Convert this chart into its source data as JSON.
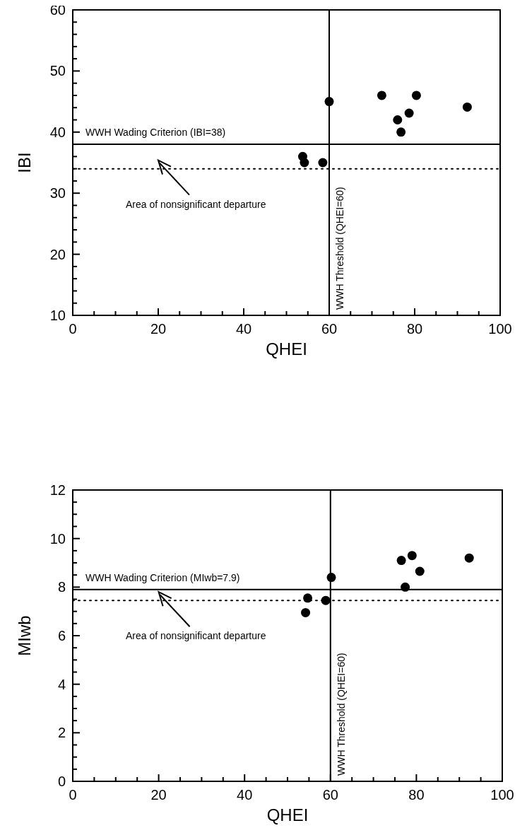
{
  "chart_data": [
    {
      "type": "scatter",
      "xlabel": "QHEI",
      "ylabel": "IBI",
      "marker": "circle",
      "grid": false,
      "series": [
        {
          "color": "#000000",
          "x": [
            53.8,
            54.2,
            58.5,
            60,
            72.3,
            76,
            76.8,
            78.7,
            80.4,
            92.3
          ],
          "values": [
            36,
            35,
            35,
            45,
            46,
            42,
            40,
            43.1,
            46,
            44.1
          ]
        }
      ],
      "xlim": [
        0,
        100
      ],
      "ylim": [
        10,
        60
      ],
      "xticks": [
        0,
        {
          "value": 5,
          "label": null
        },
        {
          "value": 10,
          "label": null
        },
        {
          "value": 15,
          "label": null
        },
        20,
        {
          "value": 25,
          "label": null
        },
        {
          "value": 30,
          "label": null
        },
        {
          "value": 35,
          "label": null
        },
        40,
        {
          "value": 45,
          "label": null
        },
        {
          "value": 50,
          "label": null
        },
        {
          "value": 55,
          "label": null
        },
        60,
        {
          "value": 65,
          "label": null
        },
        {
          "value": 70,
          "label": null
        },
        {
          "value": 75,
          "label": null
        },
        80,
        {
          "value": 85,
          "label": null
        },
        {
          "value": 90,
          "label": null
        },
        {
          "value": 95,
          "label": null
        },
        100
      ],
      "yticks": [
        10,
        {
          "value": 12,
          "label": null
        },
        {
          "value": 14,
          "label": null
        },
        {
          "value": 16,
          "label": null
        },
        {
          "value": 18,
          "label": null
        },
        20,
        {
          "value": 22,
          "label": null
        },
        {
          "value": 24,
          "label": null
        },
        {
          "value": 26,
          "label": null
        },
        {
          "value": 28,
          "label": null
        },
        30,
        {
          "value": 32,
          "label": null
        },
        {
          "value": 34,
          "label": null
        },
        {
          "value": 36,
          "label": null
        },
        {
          "value": 38,
          "label": null
        },
        40,
        {
          "value": 42,
          "label": null
        },
        {
          "value": 44,
          "label": null
        },
        {
          "value": 46,
          "label": null
        },
        {
          "value": 48,
          "label": null
        },
        50,
        {
          "value": 52,
          "label": null
        },
        {
          "value": 54,
          "label": null
        },
        {
          "value": 56,
          "label": null
        },
        {
          "value": 58,
          "label": null
        },
        60
      ],
      "ref_lines": [
        {
          "axis": "y",
          "value": 38,
          "label": "WWH Wading Criterion (IBI=38)",
          "color": "#000000",
          "line_style": "solid"
        },
        {
          "axis": "y",
          "value": 34,
          "color": "#000000",
          "line_style": "dotted"
        },
        {
          "axis": "x",
          "value": 60,
          "label": "WWH Threshold (QHEI=60)",
          "color": "#000000",
          "line_style": "solid"
        }
      ],
      "annotations": [
        "Area of nonsignificant departure"
      ]
    },
    {
      "type": "scatter",
      "xlabel": "QHEI",
      "ylabel": "MIwb",
      "marker": "circle",
      "grid": false,
      "series": [
        {
          "color": "#000000",
          "x": [
            54.2,
            54.7,
            58.9,
            60.2,
            76.5,
            77.4,
            79,
            80.8,
            92.3
          ],
          "values": [
            6.95,
            7.55,
            7.45,
            8.4,
            9.1,
            8,
            9.3,
            8.65,
            9.2
          ]
        }
      ],
      "xlim": [
        0,
        100
      ],
      "ylim": [
        0,
        12
      ],
      "xticks": [
        0,
        {
          "value": 5,
          "label": null
        },
        {
          "value": 10,
          "label": null
        },
        {
          "value": 15,
          "label": null
        },
        20,
        {
          "value": 25,
          "label": null
        },
        {
          "value": 30,
          "label": null
        },
        {
          "value": 35,
          "label": null
        },
        40,
        {
          "value": 45,
          "label": null
        },
        {
          "value": 50,
          "label": null
        },
        {
          "value": 55,
          "label": null
        },
        60,
        {
          "value": 65,
          "label": null
        },
        {
          "value": 70,
          "label": null
        },
        {
          "value": 75,
          "label": null
        },
        80,
        {
          "value": 85,
          "label": null
        },
        {
          "value": 90,
          "label": null
        },
        {
          "value": 95,
          "label": null
        },
        100
      ],
      "yticks": [
        0,
        {
          "value": 0.5,
          "label": null
        },
        {
          "value": 1,
          "label": null
        },
        {
          "value": 1.5,
          "label": null
        },
        2,
        {
          "value": 2.5,
          "label": null
        },
        {
          "value": 3,
          "label": null
        },
        {
          "value": 3.5,
          "label": null
        },
        4,
        {
          "value": 4.5,
          "label": null
        },
        {
          "value": 5,
          "label": null
        },
        {
          "value": 5.5,
          "label": null
        },
        6,
        {
          "value": 6.5,
          "label": null
        },
        {
          "value": 7,
          "label": null
        },
        {
          "value": 7.5,
          "label": null
        },
        8,
        {
          "value": 8.5,
          "label": null
        },
        {
          "value": 9,
          "label": null
        },
        {
          "value": 9.5,
          "label": null
        },
        10,
        {
          "value": 10.5,
          "label": null
        },
        {
          "value": 11,
          "label": null
        },
        {
          "value": 11.5,
          "label": null
        },
        12
      ],
      "ref_lines": [
        {
          "axis": "y",
          "value": 7.9,
          "label": "WWH Wading Criterion (MIwb=7.9)",
          "color": "#000000",
          "line_style": "solid"
        },
        {
          "axis": "y",
          "value": 7.45,
          "color": "#000000",
          "line_style": "dotted"
        },
        {
          "axis": "x",
          "value": 60,
          "label": "WWH Threshold (QHEI=60)",
          "color": "#000000",
          "line_style": "solid"
        }
      ],
      "annotations": [
        "Area of nonsignificant departure"
      ]
    }
  ]
}
